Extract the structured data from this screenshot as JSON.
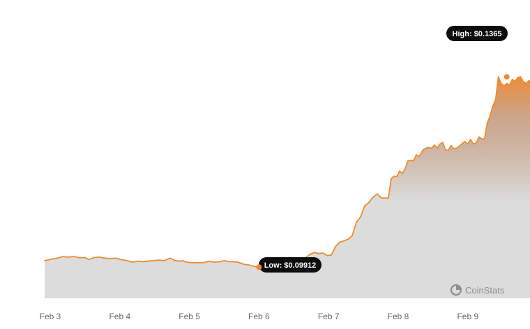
{
  "chart_data": {
    "type": "area",
    "x_ticks": [
      "Feb 3",
      "Feb 4",
      "Feb 5",
      "Feb 6",
      "Feb 7",
      "Feb 8",
      "Feb 9"
    ],
    "x_range": [
      3.0,
      9.9
    ],
    "y_range": [
      0.093,
      0.142
    ],
    "series": [
      {
        "x": [
          3.0,
          3.1,
          3.18,
          3.26,
          3.34,
          3.42,
          3.5,
          3.56,
          3.62,
          3.7,
          3.78,
          3.86,
          3.94,
          4.02,
          4.1,
          4.18,
          4.26,
          4.34,
          4.4,
          4.48,
          4.56,
          4.64,
          4.72,
          4.8,
          4.86,
          4.9,
          4.96,
          5.04,
          5.12,
          5.2,
          5.28,
          5.36,
          5.44,
          5.5,
          5.56,
          5.62,
          5.7,
          5.78,
          5.84,
          5.9,
          5.96,
          6.02,
          6.1,
          6.18,
          6.26,
          6.34,
          6.42,
          6.5,
          6.56,
          6.62,
          6.68,
          6.74,
          6.8,
          6.86,
          6.92,
          6.98,
          7.04,
          7.1,
          7.16,
          7.22,
          7.28,
          7.34,
          7.4,
          7.46,
          7.52,
          7.58,
          7.64,
          7.7,
          7.76,
          7.82,
          7.86,
          7.9,
          7.94,
          7.98,
          8.02,
          8.06,
          8.1,
          8.14,
          8.18,
          8.22,
          8.26,
          8.3,
          8.36,
          8.42,
          8.48,
          8.52,
          8.56,
          8.6,
          8.64,
          8.68,
          8.72,
          8.76,
          8.8,
          8.84,
          8.88,
          8.92,
          8.96,
          9.0,
          9.04,
          9.08,
          9.12,
          9.16,
          9.2,
          9.24,
          9.28,
          9.32,
          9.36,
          9.4,
          9.44,
          9.48,
          9.52,
          9.56,
          9.6,
          9.64,
          9.68,
          9.72,
          9.76,
          9.8,
          9.84,
          9.88,
          9.9
        ],
        "y": [
          0.1004,
          0.1009,
          0.1012,
          0.1011,
          0.1012,
          0.101,
          0.101,
          0.1006,
          0.101,
          0.1011,
          0.1009,
          0.1008,
          0.1009,
          0.1006,
          0.1004,
          0.1001,
          0.1003,
          0.1002,
          0.1003,
          0.1004,
          0.1005,
          0.1004,
          0.1009,
          0.1004,
          0.1003,
          0.1004,
          0.1001,
          0.1,
          0.1,
          0.1,
          0.1003,
          0.1001,
          0.1002,
          0.1004,
          0.1002,
          0.1002,
          0.1001,
          0.0997,
          0.0996,
          0.0994,
          0.0992,
          0.0991,
          0.0993,
          0.0995,
          0.0998,
          0.0998,
          0.1,
          0.1002,
          0.1004,
          0.1008,
          0.1011,
          0.1017,
          0.102,
          0.1018,
          0.1019,
          0.1014,
          0.1015,
          0.1032,
          0.104,
          0.1043,
          0.1046,
          0.1053,
          0.108,
          0.109,
          0.1112,
          0.1118,
          0.1129,
          0.1135,
          0.1127,
          0.1127,
          0.1127,
          0.1165,
          0.117,
          0.1169,
          0.118,
          0.1175,
          0.1185,
          0.12,
          0.1201,
          0.12,
          0.1212,
          0.1208,
          0.1222,
          0.1226,
          0.1225,
          0.1231,
          0.1225,
          0.1233,
          0.1236,
          0.1221,
          0.1221,
          0.123,
          0.1224,
          0.1225,
          0.1229,
          0.1234,
          0.1238,
          0.1233,
          0.1242,
          0.1233,
          0.1235,
          0.1247,
          0.1243,
          0.1243,
          0.1274,
          0.1288,
          0.1308,
          0.132,
          0.1365,
          0.1352,
          0.1347,
          0.1352,
          0.1349,
          0.136,
          0.1356,
          0.1364,
          0.1365,
          0.1355,
          0.1352,
          0.1358,
          0.135
        ]
      }
    ],
    "annotations": {
      "high_label": "High: $0.1365",
      "high_point": {
        "x": 9.56,
        "y": 0.1365
      },
      "low_label": "Low: $0.09912",
      "low_point": {
        "x": 6.0,
        "y": 0.09912
      }
    },
    "colors": {
      "line": "#f08a2e",
      "fill_top": "#ec8833",
      "fill_bottom": "#dcdcdc",
      "tag_background": "#0d0d0d",
      "tag_text": "#ffffff",
      "tick_text": "#666666",
      "watermark": "#8e8e8e"
    },
    "grid": false,
    "watermark": "CoinStats",
    "watermark_icon": "pie-chart-icon"
  }
}
